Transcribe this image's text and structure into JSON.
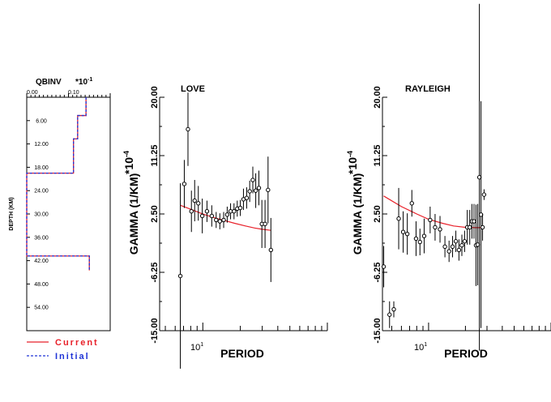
{
  "chart_data": [
    {
      "type": "line",
      "title": "QBINV",
      "x_multiplier": "*10",
      "x_multiplier_exp": "-1",
      "xlabel": "",
      "ylabel": "DEPTH (KM)",
      "x_ticks": [
        "0.00",
        "0.10"
      ],
      "xlim": [
        0.0,
        0.2
      ],
      "y_ticks": [
        "6.00",
        "12.00",
        "18.00",
        "24.00",
        "30.00",
        "36.00",
        "42.00",
        "48.00",
        "54.00"
      ],
      "ylim": [
        0,
        60
      ],
      "series": [
        {
          "name": "Current",
          "color": "#e8212a",
          "x": [
            0.142,
            0.142,
            0.122,
            0.122,
            0.112,
            0.112,
            0.0,
            0.0,
            0.15,
            0.15
          ],
          "y": [
            0,
            4.7,
            4.7,
            10.7,
            10.7,
            19.5,
            19.5,
            40.8,
            40.8,
            44.5
          ]
        },
        {
          "name": "Initial",
          "color": "#1f33d6",
          "x": [
            0.142,
            0.142,
            0.122,
            0.122,
            0.112,
            0.112,
            0.0,
            0.0,
            0.15,
            0.15
          ],
          "y": [
            0,
            4.7,
            4.7,
            10.7,
            10.7,
            19.5,
            19.5,
            40.8,
            40.8,
            44.5
          ]
        }
      ]
    },
    {
      "type": "scatter",
      "title": "LOVE",
      "xlabel": "PERIOD",
      "ylabel": "GAMMA (1/KM)",
      "y_multiplier": "*10",
      "y_multiplier_exp": "-4",
      "x_scale": "log",
      "xlim": [
        4.5,
        100
      ],
      "x_tick_label": "10",
      "x_tick_label_exp": "1",
      "ylim": [
        -15,
        20
      ],
      "y_ticks": [
        "-15.00",
        "-6.25",
        "2.50",
        "11.25",
        "20.00"
      ],
      "points": [
        {
          "x": 6.6,
          "y": -6.8,
          "err": 13.9
        },
        {
          "x": 7.1,
          "y": 7.0,
          "err": 3.6
        },
        {
          "x": 7.6,
          "y": 15.2,
          "err": 5.5
        },
        {
          "x": 8.1,
          "y": 2.9,
          "err": 3.1
        },
        {
          "x": 8.6,
          "y": 4.5,
          "err": 3.1
        },
        {
          "x": 9.2,
          "y": 4.1,
          "err": 2.6
        },
        {
          "x": 9.9,
          "y": 2.2,
          "err": 2.6
        },
        {
          "x": 10.8,
          "y": 2.9,
          "err": 1.6
        },
        {
          "x": 11.8,
          "y": 2.2,
          "err": 1.6
        },
        {
          "x": 12.8,
          "y": 1.6,
          "err": 1.2
        },
        {
          "x": 13.7,
          "y": 1.4,
          "err": 1.2
        },
        {
          "x": 14.7,
          "y": 1.6,
          "err": 1.2
        },
        {
          "x": 15.7,
          "y": 2.4,
          "err": 1.2
        },
        {
          "x": 16.7,
          "y": 2.9,
          "err": 1.2
        },
        {
          "x": 17.8,
          "y": 2.9,
          "err": 1.2
        },
        {
          "x": 18.9,
          "y": 3.3,
          "err": 1.2
        },
        {
          "x": 20.0,
          "y": 3.4,
          "err": 1.2
        },
        {
          "x": 21.2,
          "y": 4.7,
          "err": 1.6
        },
        {
          "x": 22.5,
          "y": 4.9,
          "err": 1.6
        },
        {
          "x": 23.8,
          "y": 5.9,
          "err": 1.6
        },
        {
          "x": 25.2,
          "y": 7.6,
          "err": 2.0
        },
        {
          "x": 26.6,
          "y": 6.0,
          "err": 2.6
        },
        {
          "x": 28.2,
          "y": 6.4,
          "err": 2.6
        },
        {
          "x": 29.8,
          "y": 1.0,
          "err": 3.6
        },
        {
          "x": 31.6,
          "y": 1.0,
          "err": 3.6
        },
        {
          "x": 33.4,
          "y": 6.1,
          "err": 5.0
        },
        {
          "x": 35.2,
          "y": -2.9,
          "err": 4.8
        }
      ],
      "model": {
        "name": "Current",
        "color": "#e8212a",
        "x": [
          6.6,
          8,
          10,
          12,
          15,
          18,
          22,
          26,
          30,
          35.2
        ],
        "y": [
          3.8,
          3.2,
          2.5,
          2.0,
          1.5,
          1.1,
          0.7,
          0.4,
          0.2,
          0.05
        ]
      }
    },
    {
      "type": "scatter",
      "title": "RAYLEIGH",
      "xlabel": "PERIOD",
      "ylabel": "GAMMA (1/KM)",
      "y_multiplier": "*10",
      "y_multiplier_exp": "-4",
      "x_scale": "log",
      "xlim": [
        4.2,
        100
      ],
      "x_tick_label": "10",
      "x_tick_label_exp": "1",
      "ylim": [
        -15,
        20
      ],
      "y_ticks": [
        "-15.00",
        "-6.25",
        "2.50",
        "11.25",
        "20.00"
      ],
      "points": [
        {
          "x": 4.3,
          "y": -5.4,
          "err": 3.1
        },
        {
          "x": 4.8,
          "y": -12.6,
          "err": 2.0
        },
        {
          "x": 5.2,
          "y": -11.8,
          "err": 1.2
        },
        {
          "x": 5.7,
          "y": 1.8,
          "err": 4.6
        },
        {
          "x": 6.2,
          "y": -0.2,
          "err": 3.1
        },
        {
          "x": 6.7,
          "y": -0.5,
          "err": 3.1
        },
        {
          "x": 7.3,
          "y": 4.1,
          "err": 2.0
        },
        {
          "x": 7.9,
          "y": -1.2,
          "err": 2.6
        },
        {
          "x": 8.5,
          "y": -1.7,
          "err": 2.0
        },
        {
          "x": 9.2,
          "y": -0.8,
          "err": 2.6
        },
        {
          "x": 10.3,
          "y": 1.6,
          "err": 2.0
        },
        {
          "x": 11.3,
          "y": 0.5,
          "err": 2.0
        },
        {
          "x": 12.4,
          "y": 0.2,
          "err": 2.0
        },
        {
          "x": 13.6,
          "y": -2.4,
          "err": 1.6
        },
        {
          "x": 14.7,
          "y": -3.1,
          "err": 1.6
        },
        {
          "x": 15.7,
          "y": -2.4,
          "err": 1.6
        },
        {
          "x": 16.7,
          "y": -1.6,
          "err": 1.6
        },
        {
          "x": 17.7,
          "y": -2.9,
          "err": 1.6
        },
        {
          "x": 18.7,
          "y": -2.2,
          "err": 1.6
        },
        {
          "x": 19.7,
          "y": -1.6,
          "err": 1.6
        },
        {
          "x": 20.7,
          "y": 0.5,
          "err": 2.6
        },
        {
          "x": 21.7,
          "y": 0.5,
          "err": 2.6
        },
        {
          "x": 22.6,
          "y": 1.4,
          "err": 2.6
        },
        {
          "x": 23.5,
          "y": 1.4,
          "err": 2.6
        },
        {
          "x": 24.4,
          "y": -2.2,
          "err": 6.1
        },
        {
          "x": 25.2,
          "y": -2.1,
          "err": 6.1
        },
        {
          "x": 26.0,
          "y": 8.0,
          "err": 26.0
        },
        {
          "x": 26.8,
          "y": 2.4,
          "err": 17.0
        },
        {
          "x": 27.6,
          "y": 0.5,
          "err": 2.0
        },
        {
          "x": 28.4,
          "y": 5.4,
          "err": 0.8
        }
      ],
      "model": {
        "name": "Current",
        "color": "#e8212a",
        "x": [
          4.3,
          6,
          8,
          10,
          13,
          16,
          20,
          24,
          28.4
        ],
        "y": [
          5.2,
          3.6,
          2.5,
          1.7,
          1.1,
          0.7,
          0.5,
          0.45,
          0.45
        ]
      }
    }
  ],
  "legend": {
    "current_label": "Current",
    "initial_label": "Initial",
    "current_color": "#e8212a",
    "initial_color": "#1f33d6"
  }
}
